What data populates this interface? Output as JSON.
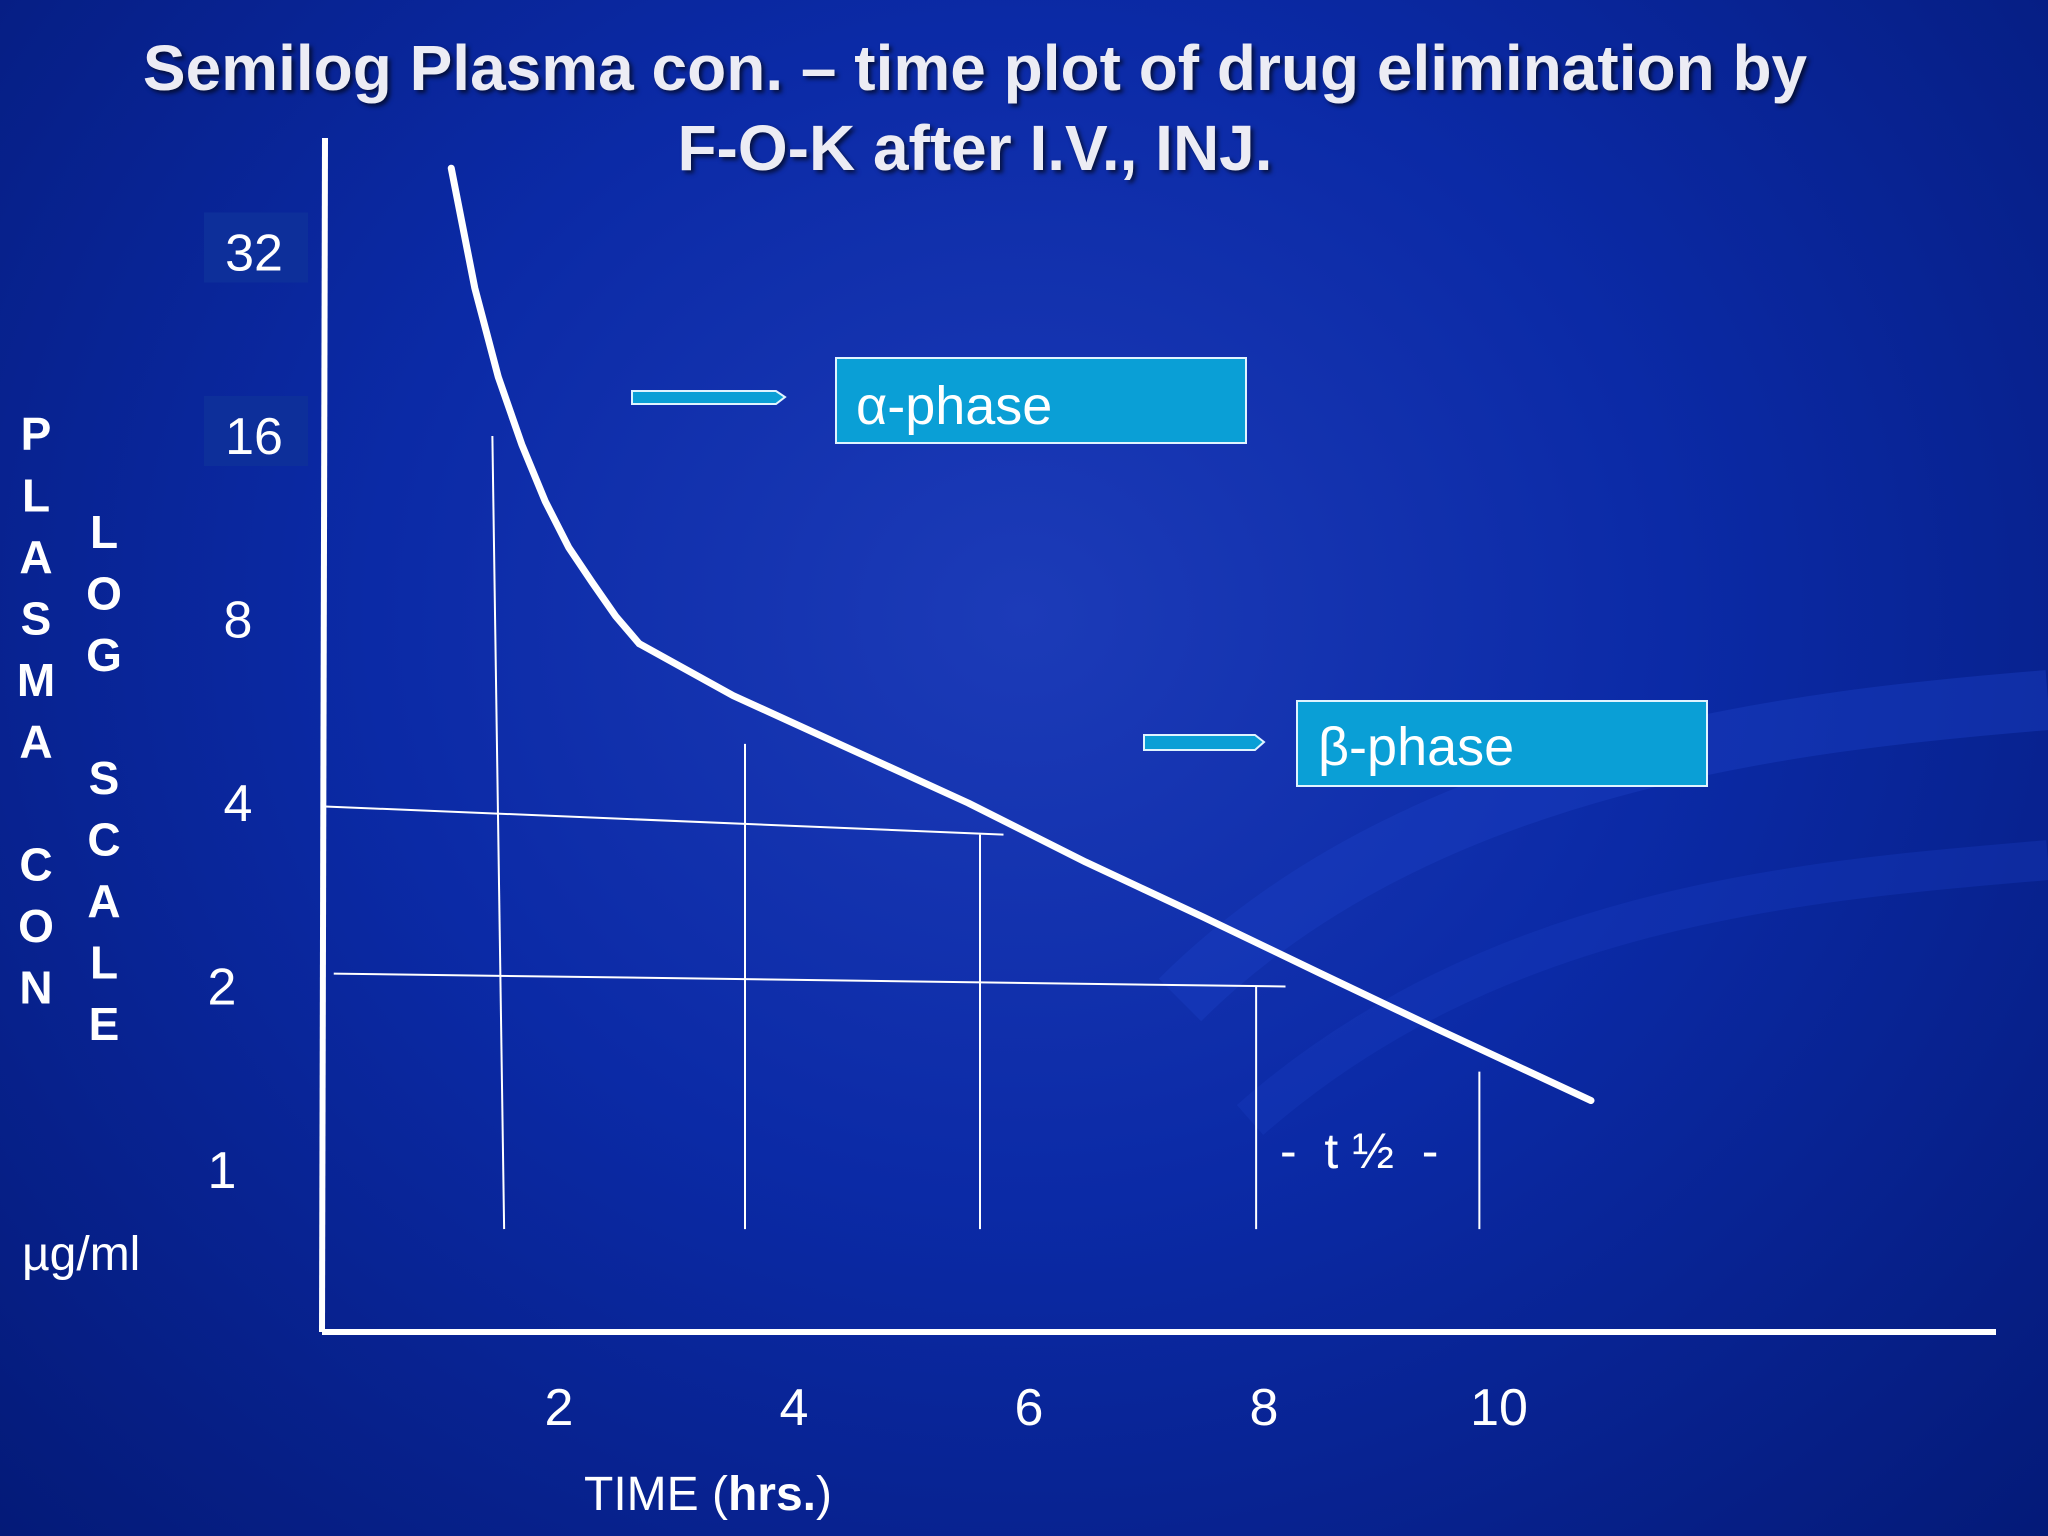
{
  "slide": {
    "title_line1": "Semilog Plasma con. – time plot of drug elimination by",
    "title_line2": "F-O-K    after I.V., INJ."
  },
  "chart_data": {
    "type": "line",
    "title": "Semilog Plasma con. – time plot of drug elimination by F-O-K after I.V., INJ.",
    "xlabel": "TIME (hrs.)",
    "xlabel_parts": {
      "prefix": "TIME (",
      "bold": "hrs.",
      "suffix": ")"
    },
    "ylabel_outer": "PLASMA CON",
    "ylabel_inner": "LOG SCALE",
    "y_unit": "µg/ml",
    "y_scale": "log2",
    "y_ticks": [
      1,
      2,
      4,
      8,
      16,
      32
    ],
    "y_tick_labels": [
      "1",
      "2",
      "4",
      "8",
      "16",
      "32"
    ],
    "x_ticks": [
      2,
      4,
      6,
      8,
      10
    ],
    "x_tick_labels": [
      "2",
      "4",
      "6",
      "8",
      "10"
    ],
    "xlim": [
      0,
      11
    ],
    "ylim": [
      0.8,
      48
    ],
    "series": [
      {
        "x": [
          1.1,
          1.3,
          1.5,
          1.7,
          1.9,
          2.1,
          2.3,
          2.5,
          2.7
        ],
        "y": [
          44,
          28,
          20,
          15.5,
          12.5,
          10.5,
          9.2,
          8.1,
          7.3
        ]
      },
      {
        "x": [
          2.7,
          3.5,
          4.5,
          5.5,
          6.5,
          7.5,
          8.5,
          9.5,
          10.8
        ],
        "y": [
          7.3,
          6.0,
          4.9,
          4.0,
          3.2,
          2.6,
          2.1,
          1.7,
          1.3
        ]
      }
    ],
    "annotations": {
      "alpha_label": "α-phase",
      "beta_label": "β-phase",
      "half_life_label": "-  t ½  -"
    },
    "guide_lines": [
      {
        "x_from": 0,
        "y_from": 3.95,
        "x_to": 5.8,
        "y_to": 3.55
      },
      {
        "x_from": 0.1,
        "y_from": 2.1,
        "x_to": 8.2,
        "y_to": 2.0
      },
      {
        "x_from": 1.45,
        "y_from": 16,
        "x_to": 1.55,
        "y_to": 0.8
      },
      {
        "x_from": 3.6,
        "y_from": 5.0,
        "x_to": 3.6,
        "y_to": 0.8
      },
      {
        "x_from": 5.6,
        "y_from": 3.55,
        "x_to": 5.6,
        "y_to": 0.8
      },
      {
        "x_from": 7.95,
        "y_from": 2.0,
        "x_to": 7.95,
        "y_to": 0.8
      },
      {
        "x_from": 9.85,
        "y_from": 1.45,
        "x_to": 9.85,
        "y_to": 0.8
      }
    ],
    "grid": false,
    "legend": "none",
    "colors": {
      "background": "#0b2aa6",
      "curve": "#ffffff",
      "label_box": "#0a9fd6",
      "label_box_border": "#dff4ff",
      "tick_box": "#0d2f9a"
    }
  }
}
